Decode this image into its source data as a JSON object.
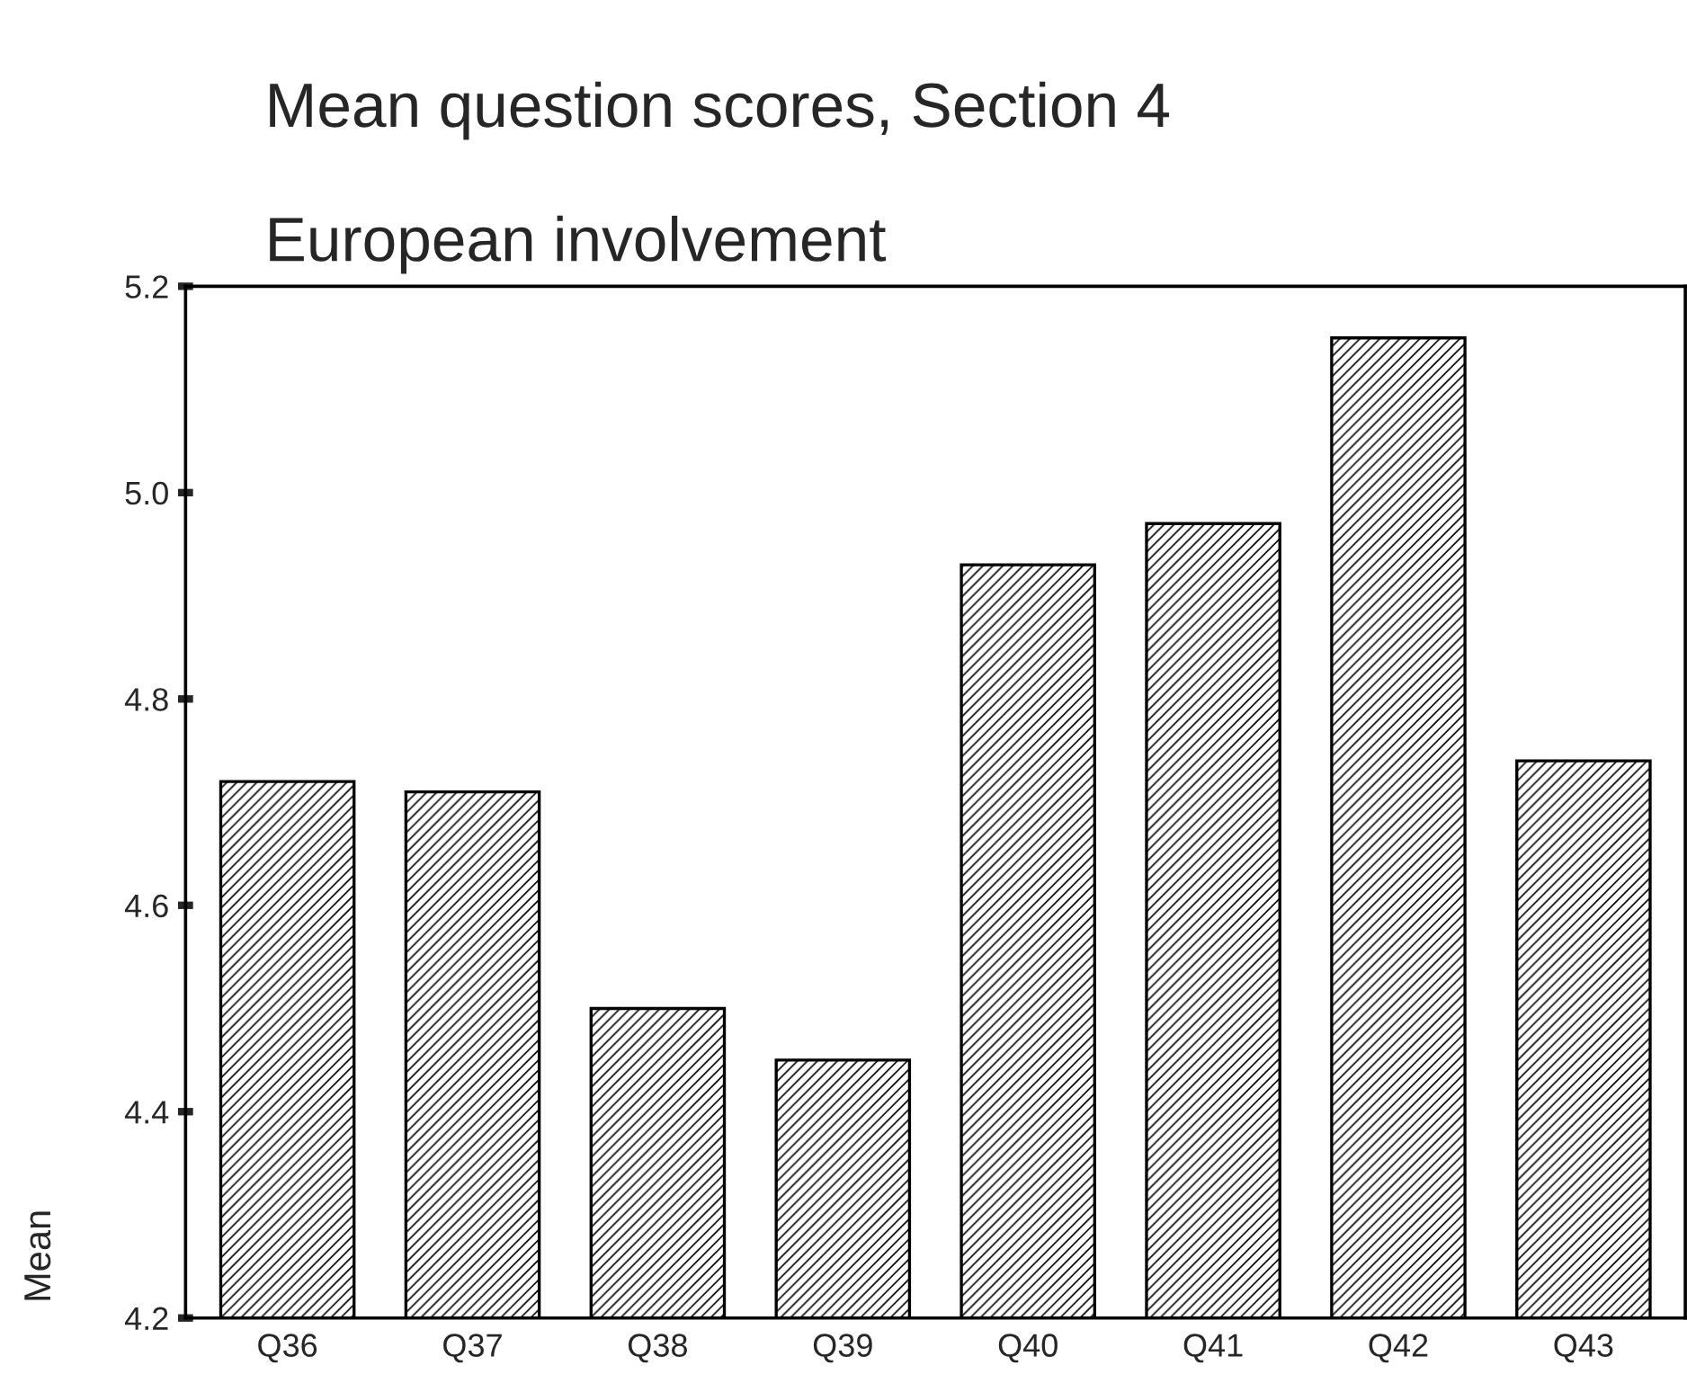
{
  "chart_data": {
    "type": "bar",
    "title": "Mean question scores, Section 4",
    "subtitle": "European involvement",
    "ylabel": "Mean",
    "categories": [
      "Q36",
      "Q37",
      "Q38",
      "Q39",
      "Q40",
      "Q41",
      "Q42",
      "Q43"
    ],
    "values": [
      4.72,
      4.71,
      4.5,
      4.45,
      4.93,
      4.97,
      5.15,
      4.74
    ],
    "color": "#000000",
    "ylim": [
      4.2,
      5.2
    ],
    "yticks": [
      {
        "value": 4.2,
        "label": "4.2"
      },
      {
        "value": 4.4,
        "label": "4.4"
      },
      {
        "value": 4.6,
        "label": "4.6"
      },
      {
        "value": 4.8,
        "label": "4.8"
      },
      {
        "value": 5.0,
        "label": "5.0"
      },
      {
        "value": 5.2,
        "label": "5.2"
      }
    ],
    "grid": false,
    "legend": false
  }
}
